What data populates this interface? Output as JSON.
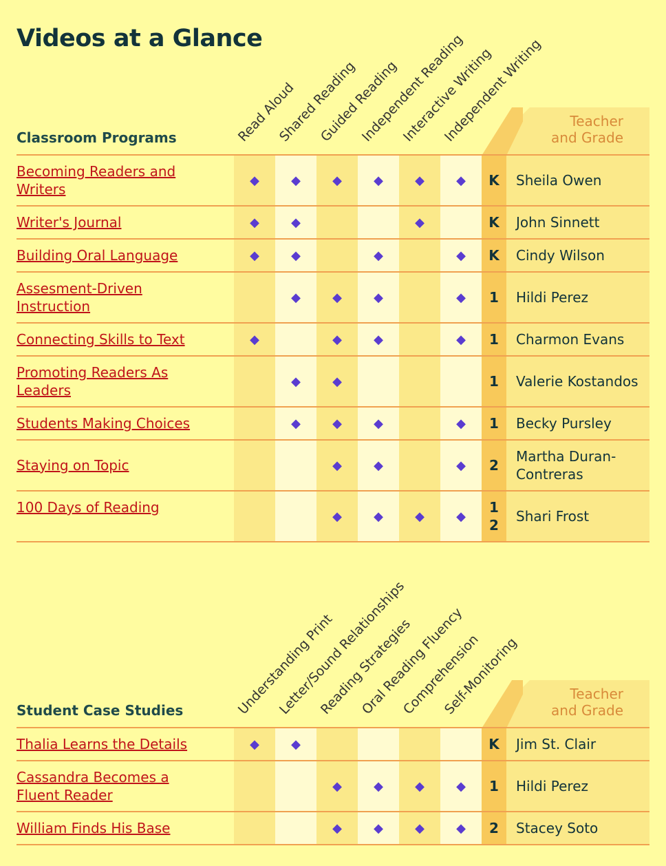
{
  "page_title": "Videos at a Glance",
  "colors": {
    "background": "#fffca0",
    "link": "#c0141a",
    "diamond": "#5a3cd0",
    "rule": "#f0a050",
    "grade_column": "#f8c95a"
  },
  "mark_icon": "diamond-icon",
  "classroom": {
    "title": "Classroom Programs",
    "teacher_header_1": "Teacher",
    "teacher_header_2": "and Grade",
    "columns": [
      "Read Aloud",
      "Shared Reading",
      "Guided Reading",
      "Independent Reading",
      "Interactive Writing",
      "Independent Writing"
    ],
    "rows": [
      {
        "title": "Becoming Readers and Writers",
        "marks": [
          1,
          1,
          1,
          1,
          1,
          1
        ],
        "grade": "K",
        "teacher": "Sheila Owen"
      },
      {
        "title": "Writer's Journal",
        "marks": [
          1,
          1,
          0,
          0,
          1,
          0
        ],
        "grade": "K",
        "teacher": "John Sinnett"
      },
      {
        "title": "Building Oral Language",
        "marks": [
          1,
          1,
          0,
          1,
          0,
          1
        ],
        "grade": "K",
        "teacher": "Cindy Wilson"
      },
      {
        "title": "Assesment-Driven Instruction",
        "marks": [
          0,
          1,
          1,
          1,
          0,
          1
        ],
        "grade": "1",
        "teacher": "Hildi Perez"
      },
      {
        "title": "Connecting Skills to Text",
        "marks": [
          1,
          0,
          1,
          1,
          0,
          1
        ],
        "grade": "1",
        "teacher": "Charmon Evans"
      },
      {
        "title": "Promoting Readers As Leaders",
        "marks": [
          0,
          1,
          1,
          0,
          0,
          0
        ],
        "grade": "1",
        "teacher": "Valerie Kostandos"
      },
      {
        "title": "Students Making Choices",
        "marks": [
          0,
          1,
          1,
          1,
          0,
          1
        ],
        "grade": "1",
        "teacher": "Becky Pursley"
      },
      {
        "title": "Staying on Topic",
        "marks": [
          0,
          0,
          1,
          1,
          0,
          1
        ],
        "grade": "2",
        "teacher": "Martha Duran-Contreras"
      },
      {
        "title": "100 Days of Reading",
        "marks": [
          0,
          0,
          1,
          1,
          1,
          1
        ],
        "grade": "1 2",
        "teacher": "Shari Frost"
      }
    ]
  },
  "casestudies": {
    "title": "Student Case Studies",
    "teacher_header_1": "Teacher",
    "teacher_header_2": "and Grade",
    "columns": [
      "Understanding Print",
      "Letter/Sound Relationships",
      "Reading Strategies",
      "Oral Reading Fluency",
      "Comprehension",
      "Self-Monitoring"
    ],
    "rows": [
      {
        "title": "Thalia Learns the Details",
        "marks": [
          1,
          1,
          0,
          0,
          0,
          0
        ],
        "grade": "K",
        "teacher": "Jim St. Clair"
      },
      {
        "title": "Cassandra Becomes a Fluent Reader",
        "marks": [
          0,
          0,
          1,
          1,
          1,
          1
        ],
        "grade": "1",
        "teacher": "Hildi Perez"
      },
      {
        "title": "William Finds His Base",
        "marks": [
          0,
          0,
          1,
          1,
          1,
          1
        ],
        "grade": "2",
        "teacher": "Stacey Soto"
      }
    ]
  }
}
